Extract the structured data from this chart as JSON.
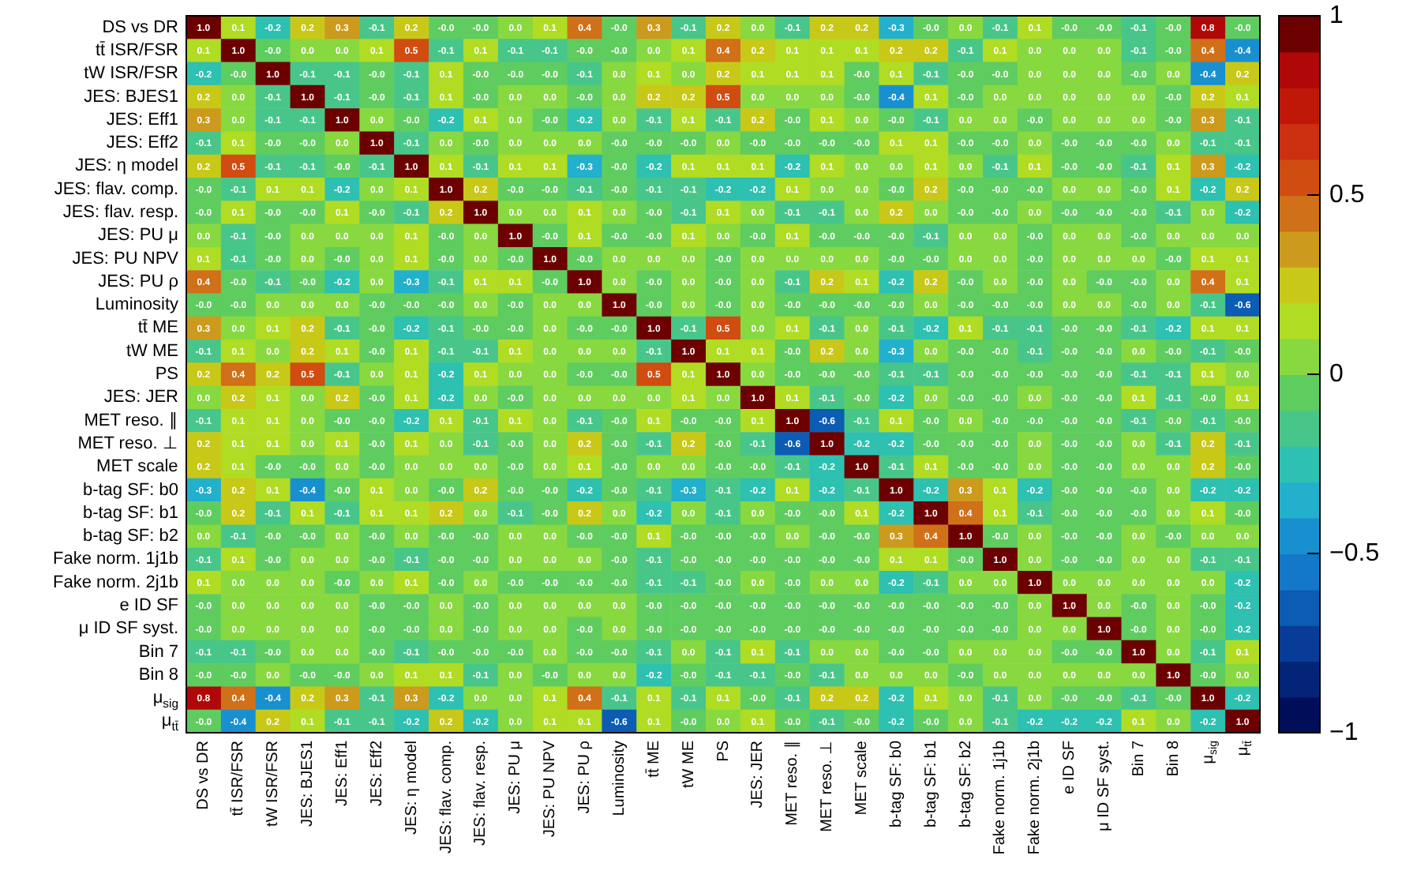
{
  "chart_data": {
    "type": "heatmap",
    "categories": [
      "DS vs DR",
      "tt̄ ISR/FSR",
      "tW ISR/FSR",
      "JES: BJES1",
      "JES: Eff1",
      "JES: Eff2",
      "JES: η model",
      "JES: flav. comp.",
      "JES: flav. resp.",
      "JES: PU μ",
      "JES: PU NPV",
      "JES: PU ρ",
      "Luminosity",
      "tt̄ ME",
      "tW ME",
      "PS",
      "JES: JER",
      "MET reso. ∥",
      "MET reso. ⊥",
      "MET scale",
      "b-tag SF: b0",
      "b-tag SF: b1",
      "b-tag SF: b2",
      "Fake norm. 1j1b",
      "Fake norm. 2j1b",
      "e ID SF",
      "μ ID SF syst.",
      "Bin 7",
      "Bin 8",
      "μ$_{sig}$",
      "μ$_{tt̄}$"
    ],
    "y_categories": [
      "DS vs DR",
      "tt̄ ISR/FSR",
      "tW ISR/FSR",
      "JES: BJES1",
      "JES: Eff1",
      "JES: Eff2",
      "JES: η model",
      "JES: flav. comp.",
      "JES: flav. resp.",
      "JES: PU μ",
      "JES: PU NPV",
      "JES: PU ρ",
      "Luminosity",
      "tt̄ ME",
      "tW ME",
      "PS",
      "JES: JER",
      "MET reso. ∥",
      "MET reso. ⊥",
      "MET scale",
      "b-tag SF: b0",
      "b-tag SF: b1",
      "b-tag SF: b2",
      "Fake norm. 1j1b",
      "Fake norm. 2j1b",
      "e ID SF",
      "μ ID SF syst.",
      "Bin 7",
      "Bin 8",
      "μ$_{sig}$",
      "μ$_{tt̄}$"
    ],
    "cells": [
      [
        1.0,
        0.1,
        -0.2,
        0.2,
        0.3,
        -0.1,
        0.2,
        -0.0,
        -0.0,
        0.0,
        0.1,
        0.4,
        -0.0,
        0.3,
        -0.1,
        0.2,
        0.0,
        -0.1,
        0.2,
        0.2,
        -0.3,
        -0.0,
        0.0,
        -0.1,
        0.1,
        -0.0,
        -0.0,
        -0.1,
        -0.0,
        0.8,
        -0.0
      ],
      [
        0.1,
        1.0,
        -0.0,
        0.0,
        0.0,
        0.1,
        0.5,
        -0.1,
        0.1,
        -0.1,
        -0.1,
        -0.0,
        -0.0,
        0.0,
        0.1,
        0.4,
        0.2,
        0.1,
        0.1,
        0.1,
        0.2,
        0.2,
        -0.1,
        0.1,
        0.0,
        0.0,
        0.0,
        -0.1,
        -0.0,
        0.4,
        -0.4
      ],
      [
        -0.2,
        -0.0,
        1.0,
        -0.1,
        -0.1,
        -0.0,
        -0.1,
        0.1,
        -0.0,
        -0.0,
        -0.0,
        -0.1,
        0.0,
        0.1,
        0.0,
        0.2,
        0.1,
        0.1,
        0.1,
        -0.0,
        0.1,
        -0.1,
        -0.0,
        -0.0,
        0.0,
        0.0,
        0.0,
        -0.0,
        0.0,
        -0.4,
        0.2
      ],
      [
        0.2,
        0.0,
        -0.1,
        1.0,
        -0.1,
        -0.0,
        -0.1,
        0.1,
        -0.0,
        0.0,
        0.0,
        -0.0,
        0.0,
        0.2,
        0.2,
        0.5,
        0.0,
        0.0,
        0.0,
        -0.0,
        -0.4,
        0.1,
        -0.0,
        0.0,
        0.0,
        0.0,
        0.0,
        0.0,
        -0.0,
        0.2,
        0.1
      ],
      [
        0.3,
        0.0,
        -0.1,
        -0.1,
        1.0,
        0.0,
        -0.0,
        -0.2,
        0.1,
        0.0,
        -0.0,
        -0.2,
        0.0,
        -0.1,
        0.1,
        -0.1,
        0.2,
        -0.0,
        0.1,
        0.0,
        -0.0,
        -0.1,
        0.0,
        0.0,
        -0.0,
        0.0,
        0.0,
        0.0,
        -0.0,
        0.3,
        -0.1
      ],
      [
        -0.1,
        0.1,
        -0.0,
        -0.0,
        0.0,
        1.0,
        -0.1,
        0.0,
        -0.0,
        0.0,
        0.0,
        0.0,
        -0.0,
        -0.0,
        -0.0,
        0.0,
        -0.0,
        -0.0,
        -0.0,
        -0.0,
        0.1,
        0.1,
        -0.0,
        -0.0,
        0.0,
        -0.0,
        -0.0,
        -0.0,
        0.0,
        -0.1,
        -0.1
      ],
      [
        0.2,
        0.5,
        -0.1,
        -0.1,
        -0.0,
        -0.1,
        1.0,
        0.1,
        -0.1,
        0.1,
        0.1,
        -0.3,
        -0.0,
        -0.2,
        0.1,
        0.1,
        0.1,
        -0.2,
        0.1,
        0.0,
        0.0,
        0.1,
        0.0,
        -0.1,
        0.1,
        -0.0,
        -0.0,
        -0.1,
        0.1,
        0.3,
        -0.2
      ],
      [
        -0.0,
        -0.1,
        0.1,
        0.1,
        -0.2,
        0.0,
        0.1,
        1.0,
        0.2,
        -0.0,
        -0.0,
        -0.1,
        -0.0,
        -0.1,
        -0.1,
        -0.2,
        -0.2,
        0.1,
        0.0,
        0.0,
        -0.0,
        0.2,
        -0.0,
        -0.0,
        -0.0,
        0.0,
        0.0,
        -0.0,
        0.1,
        -0.2,
        0.2
      ],
      [
        -0.0,
        0.1,
        -0.0,
        -0.0,
        0.1,
        -0.0,
        -0.1,
        0.2,
        1.0,
        0.0,
        0.0,
        0.1,
        0.0,
        -0.0,
        -0.1,
        0.1,
        0.0,
        -0.1,
        -0.1,
        0.0,
        0.2,
        0.0,
        -0.0,
        -0.0,
        0.0,
        -0.0,
        -0.0,
        -0.0,
        -0.1,
        0.0,
        -0.2
      ],
      [
        0.0,
        -0.1,
        -0.0,
        0.0,
        0.0,
        0.0,
        0.1,
        -0.0,
        0.0,
        1.0,
        -0.0,
        0.1,
        -0.0,
        -0.0,
        0.1,
        0.0,
        -0.0,
        0.1,
        -0.0,
        -0.0,
        -0.0,
        -0.1,
        0.0,
        0.0,
        -0.0,
        0.0,
        0.0,
        -0.0,
        0.0,
        0.0,
        0.0
      ],
      [
        0.1,
        -0.1,
        -0.0,
        0.0,
        -0.0,
        0.0,
        0.1,
        -0.0,
        0.0,
        -0.0,
        1.0,
        -0.0,
        0.0,
        0.0,
        0.0,
        -0.0,
        0.0,
        0.0,
        0.0,
        0.0,
        -0.0,
        -0.0,
        0.0,
        0.0,
        -0.0,
        0.0,
        0.0,
        0.0,
        -0.0,
        0.1,
        0.1
      ],
      [
        0.4,
        -0.0,
        -0.1,
        -0.0,
        -0.2,
        0.0,
        -0.3,
        -0.1,
        0.1,
        0.1,
        -0.0,
        1.0,
        0.0,
        -0.0,
        0.0,
        -0.0,
        0.0,
        -0.1,
        0.2,
        0.1,
        -0.2,
        0.2,
        -0.0,
        0.0,
        -0.0,
        0.0,
        -0.0,
        -0.0,
        0.0,
        0.4,
        0.1
      ],
      [
        -0.0,
        -0.0,
        0.0,
        0.0,
        0.0,
        -0.0,
        -0.0,
        -0.0,
        0.0,
        -0.0,
        0.0,
        0.0,
        1.0,
        -0.0,
        0.0,
        -0.0,
        0.0,
        -0.0,
        -0.0,
        -0.0,
        -0.0,
        0.0,
        -0.0,
        -0.0,
        -0.0,
        0.0,
        0.0,
        -0.0,
        0.0,
        -0.1,
        -0.6
      ],
      [
        0.3,
        0.0,
        0.1,
        0.2,
        -0.1,
        -0.0,
        -0.2,
        -0.1,
        -0.0,
        -0.0,
        0.0,
        -0.0,
        -0.0,
        1.0,
        -0.1,
        0.5,
        0.0,
        0.1,
        -0.1,
        0.0,
        -0.1,
        -0.2,
        0.1,
        -0.1,
        -0.1,
        -0.0,
        -0.0,
        -0.1,
        -0.2,
        0.1,
        0.1
      ],
      [
        -0.1,
        0.1,
        0.0,
        0.2,
        0.1,
        -0.0,
        0.1,
        -0.1,
        -0.1,
        0.1,
        0.0,
        0.0,
        0.0,
        -0.1,
        1.0,
        0.1,
        0.1,
        -0.0,
        0.2,
        0.0,
        -0.3,
        0.0,
        -0.0,
        -0.0,
        -0.1,
        -0.0,
        -0.0,
        0.0,
        -0.0,
        -0.1,
        -0.0
      ],
      [
        0.2,
        0.4,
        0.2,
        0.5,
        -0.1,
        0.0,
        0.1,
        -0.2,
        0.1,
        0.0,
        0.0,
        -0.0,
        -0.0,
        0.5,
        0.1,
        1.0,
        0.0,
        -0.0,
        -0.0,
        -0.0,
        -0.1,
        -0.1,
        -0.0,
        -0.0,
        -0.0,
        -0.0,
        -0.0,
        -0.1,
        -0.1,
        0.1,
        0.0
      ],
      [
        0.0,
        0.2,
        0.1,
        0.0,
        0.2,
        -0.0,
        0.1,
        -0.2,
        0.0,
        -0.0,
        0.0,
        0.0,
        0.0,
        0.0,
        0.1,
        0.0,
        1.0,
        0.1,
        -0.1,
        -0.0,
        -0.2,
        0.0,
        -0.0,
        -0.0,
        0.0,
        -0.0,
        -0.0,
        0.1,
        -0.1,
        -0.0,
        0.1
      ],
      [
        -0.1,
        0.1,
        0.1,
        0.0,
        -0.0,
        -0.0,
        -0.2,
        0.1,
        -0.1,
        0.1,
        0.0,
        -0.1,
        -0.0,
        0.1,
        -0.0,
        -0.0,
        0.1,
        1.0,
        -0.6,
        -0.1,
        0.1,
        -0.0,
        0.0,
        -0.0,
        -0.0,
        -0.0,
        -0.0,
        -0.1,
        -0.0,
        -0.1,
        -0.0
      ],
      [
        0.2,
        0.1,
        0.1,
        0.0,
        0.1,
        -0.0,
        0.1,
        0.0,
        -0.1,
        -0.0,
        0.0,
        0.2,
        -0.0,
        -0.1,
        0.2,
        -0.0,
        -0.1,
        -0.6,
        1.0,
        -0.2,
        -0.2,
        -0.0,
        -0.0,
        -0.0,
        0.0,
        -0.0,
        -0.0,
        0.0,
        -0.1,
        0.2,
        -0.1
      ],
      [
        0.2,
        0.1,
        -0.0,
        -0.0,
        0.0,
        -0.0,
        0.0,
        0.0,
        0.0,
        -0.0,
        0.0,
        0.1,
        -0.0,
        0.0,
        0.0,
        -0.0,
        -0.0,
        -0.1,
        -0.2,
        1.0,
        -0.1,
        0.1,
        -0.0,
        -0.0,
        0.0,
        -0.0,
        -0.0,
        0.0,
        0.0,
        0.2,
        -0.0
      ],
      [
        -0.3,
        0.2,
        0.1,
        -0.4,
        -0.0,
        0.1,
        0.0,
        -0.0,
        0.2,
        -0.0,
        -0.0,
        -0.2,
        -0.0,
        -0.1,
        -0.3,
        -0.1,
        -0.2,
        0.1,
        -0.2,
        -0.1,
        1.0,
        -0.2,
        0.3,
        0.1,
        -0.2,
        -0.0,
        -0.0,
        -0.0,
        0.0,
        -0.2,
        -0.2
      ],
      [
        -0.0,
        0.2,
        -0.1,
        0.1,
        -0.1,
        0.1,
        0.1,
        0.2,
        0.0,
        -0.1,
        -0.0,
        0.2,
        0.0,
        -0.2,
        0.0,
        -0.1,
        0.0,
        -0.0,
        -0.0,
        0.1,
        -0.2,
        1.0,
        0.4,
        0.1,
        -0.1,
        -0.0,
        -0.0,
        -0.0,
        0.0,
        0.1,
        -0.0
      ],
      [
        0.0,
        -0.1,
        -0.0,
        -0.0,
        0.0,
        -0.0,
        0.0,
        -0.0,
        -0.0,
        0.0,
        0.0,
        -0.0,
        -0.0,
        0.1,
        -0.0,
        -0.0,
        -0.0,
        0.0,
        -0.0,
        -0.0,
        0.3,
        0.4,
        1.0,
        -0.0,
        0.0,
        -0.0,
        -0.0,
        0.0,
        -0.0,
        0.0,
        0.0
      ],
      [
        -0.1,
        0.1,
        -0.0,
        0.0,
        0.0,
        -0.0,
        -0.1,
        -0.0,
        -0.0,
        0.0,
        0.0,
        0.0,
        -0.0,
        -0.1,
        -0.0,
        -0.0,
        -0.0,
        -0.0,
        -0.0,
        -0.0,
        0.1,
        0.1,
        -0.0,
        1.0,
        0.0,
        -0.0,
        -0.0,
        0.0,
        0.0,
        -0.1,
        -0.1
      ],
      [
        0.1,
        0.0,
        0.0,
        0.0,
        -0.0,
        0.0,
        0.1,
        -0.0,
        0.0,
        -0.0,
        -0.0,
        -0.0,
        -0.0,
        -0.1,
        -0.1,
        -0.0,
        0.0,
        -0.0,
        0.0,
        0.0,
        -0.2,
        -0.1,
        0.0,
        0.0,
        1.0,
        0.0,
        0.0,
        0.0,
        0.0,
        0.0,
        -0.2
      ],
      [
        -0.0,
        0.0,
        0.0,
        0.0,
        0.0,
        -0.0,
        -0.0,
        0.0,
        -0.0,
        0.0,
        0.0,
        0.0,
        0.0,
        -0.0,
        -0.0,
        -0.0,
        -0.0,
        -0.0,
        -0.0,
        -0.0,
        -0.0,
        -0.0,
        -0.0,
        -0.0,
        0.0,
        1.0,
        0.0,
        -0.0,
        0.0,
        -0.0,
        -0.2
      ],
      [
        -0.0,
        0.0,
        0.0,
        0.0,
        0.0,
        -0.0,
        -0.0,
        0.0,
        -0.0,
        0.0,
        0.0,
        -0.0,
        0.0,
        -0.0,
        -0.0,
        -0.0,
        -0.0,
        -0.0,
        -0.0,
        -0.0,
        -0.0,
        -0.0,
        -0.0,
        -0.0,
        0.0,
        0.0,
        1.0,
        -0.0,
        0.0,
        -0.0,
        -0.2
      ],
      [
        -0.1,
        -0.1,
        -0.0,
        0.0,
        0.0,
        -0.0,
        -0.1,
        -0.0,
        -0.0,
        -0.0,
        0.0,
        -0.0,
        -0.0,
        -0.1,
        0.0,
        -0.1,
        0.1,
        -0.1,
        0.0,
        0.0,
        -0.0,
        -0.0,
        0.0,
        0.0,
        0.0,
        -0.0,
        -0.0,
        1.0,
        0.0,
        -0.1,
        0.1
      ],
      [
        -0.0,
        -0.0,
        0.0,
        -0.0,
        -0.0,
        0.0,
        0.1,
        0.1,
        -0.1,
        0.0,
        -0.0,
        0.0,
        0.0,
        -0.2,
        -0.0,
        -0.1,
        -0.1,
        -0.0,
        -0.1,
        0.0,
        0.0,
        0.0,
        -0.0,
        0.0,
        0.0,
        0.0,
        0.0,
        0.0,
        1.0,
        -0.0,
        0.0
      ],
      [
        0.8,
        0.4,
        -0.4,
        0.2,
        0.3,
        -0.1,
        0.3,
        -0.2,
        0.0,
        0.0,
        0.1,
        0.4,
        -0.1,
        0.1,
        -0.1,
        0.1,
        -0.0,
        -0.1,
        0.2,
        0.2,
        -0.2,
        0.1,
        0.0,
        -0.1,
        0.0,
        -0.0,
        -0.0,
        -0.1,
        -0.0,
        1.0,
        -0.2
      ],
      [
        -0.0,
        -0.4,
        0.2,
        0.1,
        -0.1,
        -0.1,
        -0.2,
        0.2,
        -0.2,
        0.0,
        0.1,
        0.1,
        -0.6,
        0.1,
        -0.0,
        0.0,
        0.1,
        -0.0,
        -0.1,
        -0.0,
        -0.2,
        -0.0,
        0.0,
        -0.1,
        -0.2,
        -0.2,
        -0.2,
        0.1,
        0.0,
        -0.2,
        1.0
      ]
    ],
    "cell_labels": [
      [
        "1.0",
        "0.1",
        "-0.2",
        "0.2",
        "0.3",
        "-0.1",
        "0.2",
        "-0.0",
        "-0.0",
        "0.0",
        "0.1",
        "0.4",
        "-0.0",
        "0.3",
        "-0.1",
        "0.2",
        "0.0",
        "-0.1",
        "0.2",
        "0.2",
        "-0.3",
        "-0.0",
        "0.0",
        "-0.1",
        "0.1",
        "-0.0",
        "-0.0",
        "-0.1",
        "-0.0",
        "0.8",
        "-0.0"
      ],
      [
        "0.1",
        "1.0",
        "-0.0",
        "0.0",
        "0.0",
        "0.1",
        "0.5",
        "-0.1",
        "0.1",
        "-0.1",
        "-0.1",
        "-0.0",
        "-0.0",
        "0.0",
        "0.1",
        "0.4",
        "0.2",
        "0.1",
        "0.1",
        "0.1",
        "0.2",
        "0.2",
        "-0.1",
        "0.1",
        "0.0",
        "0.0",
        "0.0",
        "-0.1",
        "-0.0",
        "0.4",
        "-0.4"
      ],
      [
        "-0.2",
        "-0.0",
        "1.0",
        "-0.1",
        "-0.1",
        "-0.0",
        "-0.1",
        "0.1",
        "-0.0",
        "-0.0",
        "-0.0",
        "-0.1",
        "0.0",
        "0.1",
        "0.0",
        "0.2",
        "0.1",
        "0.1",
        "0.1",
        "-0.0",
        "0.1",
        "-0.1",
        "-0.0",
        "-0.0",
        "0.0",
        "0.0",
        "0.0",
        "-0.0",
        "0.0",
        "-0.4",
        "0.2"
      ],
      [
        "0.2",
        "0.0",
        "-0.1",
        "1.0",
        "-0.1",
        "-0.0",
        "-0.1",
        "0.1",
        "-0.0",
        "0.0",
        "0.0",
        "-0.0",
        "0.0",
        "0.2",
        "0.2",
        "0.5",
        "0.0",
        "0.0",
        "0.0",
        "-0.0",
        "-0.4",
        "0.1",
        "-0.0",
        "0.0",
        "0.0",
        "0.0",
        "0.0",
        "0.0",
        "-0.0",
        "0.2",
        "0.1"
      ],
      [
        "0.3",
        "0.0",
        "-0.1",
        "-0.1",
        "1.0",
        "0.0",
        "-0.0",
        "-0.2",
        "0.1",
        "0.0",
        "-0.0",
        "-0.2",
        "0.0",
        "-0.1",
        "0.1",
        "-0.1",
        "0.2",
        "-0.0",
        "0.1",
        "0.0",
        "-0.0",
        "-0.1",
        "0.0",
        "0.0",
        "-0.0",
        "0.0",
        "0.0",
        "0.0",
        "-0.0",
        "0.3",
        "-0.1"
      ],
      [
        "-0.1",
        "0.1",
        "-0.0",
        "-0.0",
        "0.0",
        "1.0",
        "-0.1",
        "0.0",
        "-0.0",
        "0.0",
        "0.0",
        "0.0",
        "-0.0",
        "-0.0",
        "-0.0",
        "0.0",
        "-0.0",
        "-0.0",
        "-0.0",
        "-0.0",
        "0.1",
        "0.1",
        "-0.0",
        "-0.0",
        "0.0",
        "-0.0",
        "-0.0",
        "-0.0",
        "0.0",
        "-0.1",
        "-0.1"
      ],
      [
        "0.2",
        "0.5",
        "-0.1",
        "-0.1",
        "-0.0",
        "-0.1",
        "1.0",
        "0.1",
        "-0.1",
        "0.1",
        "0.1",
        "-0.3",
        "-0.0",
        "-0.2",
        "0.1",
        "0.1",
        "0.1",
        "-0.2",
        "0.1",
        "0.0",
        "0.0",
        "0.1",
        "0.0",
        "-0.1",
        "0.1",
        "-0.0",
        "-0.0",
        "-0.1",
        "0.1",
        "0.3",
        "-0.2"
      ],
      [
        "-0.0",
        "-0.1",
        "0.1",
        "0.1",
        "-0.2",
        "0.0",
        "0.1",
        "1.0",
        "0.2",
        "-0.0",
        "-0.0",
        "-0.1",
        "-0.0",
        "-0.1",
        "-0.1",
        "-0.2",
        "-0.2",
        "0.1",
        "0.0",
        "0.0",
        "-0.0",
        "0.2",
        "-0.0",
        "-0.0",
        "-0.0",
        "0.0",
        "0.0",
        "-0.0",
        "0.1",
        "-0.2",
        "0.2"
      ],
      [
        "-0.0",
        "0.1",
        "-0.0",
        "-0.0",
        "0.1",
        "-0.0",
        "-0.1",
        "0.2",
        "1.0",
        "0.0",
        "0.0",
        "0.1",
        "0.0",
        "-0.0",
        "-0.1",
        "0.1",
        "0.0",
        "-0.1",
        "-0.1",
        "0.0",
        "0.2",
        "0.0",
        "-0.0",
        "-0.0",
        "0.0",
        "-0.0",
        "-0.0",
        "-0.0",
        "-0.1",
        "0.0",
        "-0.2"
      ],
      [
        "0.0",
        "-0.1",
        "-0.0",
        "0.0",
        "0.0",
        "0.0",
        "0.1",
        "-0.0",
        "0.0",
        "1.0",
        "-0.0",
        "0.1",
        "-0.0",
        "-0.0",
        "0.1",
        "0.0",
        "-0.0",
        "0.1",
        "-0.0",
        "-0.0",
        "-0.0",
        "-0.1",
        "0.0",
        "0.0",
        "-0.0",
        "0.0",
        "0.0",
        "-0.0",
        "0.0",
        "0.0",
        "0.0"
      ],
      [
        "0.1",
        "-0.1",
        "-0.0",
        "0.0",
        "-0.0",
        "0.0",
        "0.1",
        "-0.0",
        "0.0",
        "-0.0",
        "1.0",
        "-0.0",
        "0.0",
        "0.0",
        "0.0",
        "-0.0",
        "0.0",
        "0.0",
        "0.0",
        "0.0",
        "-0.0",
        "-0.0",
        "0.0",
        "0.0",
        "-0.0",
        "0.0",
        "0.0",
        "0.0",
        "-0.0",
        "0.1",
        "0.1"
      ],
      [
        "0.4",
        "-0.0",
        "-0.1",
        "-0.0",
        "-0.2",
        "0.0",
        "-0.3",
        "-0.1",
        "0.1",
        "0.1",
        "-0.0",
        "1.0",
        "0.0",
        "-0.0",
        "0.0",
        "-0.0",
        "0.0",
        "-0.1",
        "0.2",
        "0.1",
        "-0.2",
        "0.2",
        "-0.0",
        "0.0",
        "-0.0",
        "0.0",
        "-0.0",
        "-0.0",
        "0.0",
        "0.4",
        "0.1"
      ],
      [
        "-0.0",
        "-0.0",
        "0.0",
        "0.0",
        "0.0",
        "-0.0",
        "-0.0",
        "-0.0",
        "0.0",
        "-0.0",
        "0.0",
        "0.0",
        "1.0",
        "-0.0",
        "0.0",
        "-0.0",
        "0.0",
        "-0.0",
        "-0.0",
        "-0.0",
        "-0.0",
        "0.0",
        "-0.0",
        "-0.0",
        "-0.0",
        "0.0",
        "0.0",
        "-0.0",
        "0.0",
        "-0.1",
        "-0.6"
      ],
      [
        "0.3",
        "0.0",
        "0.1",
        "0.2",
        "-0.1",
        "-0.0",
        "-0.2",
        "-0.1",
        "-0.0",
        "-0.0",
        "0.0",
        "-0.0",
        "-0.0",
        "1.0",
        "-0.1",
        "0.5",
        "0.0",
        "0.1",
        "-0.1",
        "0.0",
        "-0.1",
        "-0.2",
        "0.1",
        "-0.1",
        "-0.1",
        "-0.0",
        "-0.0",
        "-0.1",
        "-0.2",
        "0.1",
        "0.1"
      ],
      [
        "-0.1",
        "0.1",
        "0.0",
        "0.2",
        "0.1",
        "-0.0",
        "0.1",
        "-0.1",
        "-0.1",
        "0.1",
        "0.0",
        "0.0",
        "0.0",
        "-0.1",
        "1.0",
        "0.1",
        "0.1",
        "-0.0",
        "0.2",
        "0.0",
        "-0.3",
        "0.0",
        "-0.0",
        "-0.0",
        "-0.1",
        "-0.0",
        "-0.0",
        "0.0",
        "-0.0",
        "-0.1",
        "-0.0"
      ],
      [
        "0.2",
        "0.4",
        "0.2",
        "0.5",
        "-0.1",
        "0.0",
        "0.1",
        "-0.2",
        "0.1",
        "0.0",
        "0.0",
        "-0.0",
        "-0.0",
        "0.5",
        "0.1",
        "1.0",
        "0.0",
        "-0.0",
        "-0.0",
        "-0.0",
        "-0.1",
        "-0.1",
        "-0.0",
        "-0.0",
        "-0.0",
        "-0.0",
        "-0.0",
        "-0.1",
        "-0.1",
        "0.1",
        "0.0"
      ],
      [
        "0.0",
        "0.2",
        "0.1",
        "0.0",
        "0.2",
        "-0.0",
        "0.1",
        "-0.2",
        "0.0",
        "-0.0",
        "0.0",
        "0.0",
        "0.0",
        "0.0",
        "0.1",
        "0.0",
        "1.0",
        "0.1",
        "-0.1",
        "-0.0",
        "-0.2",
        "0.0",
        "-0.0",
        "-0.0",
        "0.0",
        "-0.0",
        "-0.0",
        "0.1",
        "-0.1",
        "-0.0",
        "0.1"
      ],
      [
        "-0.1",
        "0.1",
        "0.1",
        "0.0",
        "-0.0",
        "-0.0",
        "-0.2",
        "0.1",
        "-0.1",
        "0.1",
        "0.0",
        "-0.1",
        "-0.0",
        "0.1",
        "-0.0",
        "-0.0",
        "0.1",
        "1.0",
        "-0.6",
        "-0.1",
        "0.1",
        "-0.0",
        "0.0",
        "-0.0",
        "-0.0",
        "-0.0",
        "-0.0",
        "-0.1",
        "-0.0",
        "-0.1",
        "-0.0"
      ],
      [
        "0.2",
        "0.1",
        "0.1",
        "0.0",
        "0.1",
        "-0.0",
        "0.1",
        "0.0",
        "-0.1",
        "-0.0",
        "0.0",
        "0.2",
        "-0.0",
        "-0.1",
        "0.2",
        "-0.0",
        "-0.1",
        "-0.6",
        "1.0",
        "-0.2",
        "-0.2",
        "-0.0",
        "-0.0",
        "-0.0",
        "0.0",
        "-0.0",
        "-0.0",
        "0.0",
        "-0.1",
        "0.2",
        "-0.1"
      ],
      [
        "0.2",
        "0.1",
        "-0.0",
        "-0.0",
        "0.0",
        "-0.0",
        "0.0",
        "0.0",
        "0.0",
        "-0.0",
        "0.0",
        "0.1",
        "-0.0",
        "0.0",
        "0.0",
        "-0.0",
        "-0.0",
        "-0.1",
        "-0.2",
        "1.0",
        "-0.1",
        "0.1",
        "-0.0",
        "-0.0",
        "0.0",
        "-0.0",
        "-0.0",
        "0.0",
        "0.0",
        "0.2",
        "-0.0"
      ],
      [
        "-0.3",
        "0.2",
        "0.1",
        "-0.4",
        "-0.0",
        "0.1",
        "0.0",
        "-0.0",
        "0.2",
        "-0.0",
        "-0.0",
        "-0.2",
        "-0.0",
        "-0.1",
        "-0.3",
        "-0.1",
        "-0.2",
        "0.1",
        "-0.2",
        "-0.1",
        "1.0",
        "-0.2",
        "0.3",
        "0.1",
        "-0.2",
        "-0.0",
        "-0.0",
        "-0.0",
        "0.0",
        "-0.2",
        "-0.2"
      ],
      [
        "-0.0",
        "0.2",
        "-0.1",
        "0.1",
        "-0.1",
        "0.1",
        "0.1",
        "0.2",
        "0.0",
        "-0.1",
        "-0.0",
        "0.2",
        "0.0",
        "-0.2",
        "0.0",
        "-0.1",
        "0.0",
        "-0.0",
        "-0.0",
        "0.1",
        "-0.2",
        "1.0",
        "0.4",
        "0.1",
        "-0.1",
        "-0.0",
        "-0.0",
        "-0.0",
        "0.0",
        "0.1",
        "-0.0"
      ],
      [
        "0.0",
        "-0.1",
        "-0.0",
        "-0.0",
        "0.0",
        "-0.0",
        "0.0",
        "-0.0",
        "-0.0",
        "0.0",
        "0.0",
        "-0.0",
        "-0.0",
        "0.1",
        "-0.0",
        "-0.0",
        "-0.0",
        "0.0",
        "-0.0",
        "-0.0",
        "0.3",
        "0.4",
        "1.0",
        "-0.0",
        "0.0",
        "-0.0",
        "-0.0",
        "0.0",
        "-0.0",
        "0.0",
        "0.0"
      ],
      [
        "-0.1",
        "0.1",
        "-0.0",
        "0.0",
        "0.0",
        "-0.0",
        "-0.1",
        "-0.0",
        "-0.0",
        "0.0",
        "0.0",
        "0.0",
        "-0.0",
        "-0.1",
        "-0.0",
        "-0.0",
        "-0.0",
        "-0.0",
        "-0.0",
        "-0.0",
        "0.1",
        "0.1",
        "-0.0",
        "1.0",
        "0.0",
        "-0.0",
        "-0.0",
        "0.0",
        "0.0",
        "-0.1",
        "-0.1"
      ],
      [
        "0.1",
        "0.0",
        "0.0",
        "0.0",
        "-0.0",
        "0.0",
        "0.1",
        "-0.0",
        "0.0",
        "-0.0",
        "-0.0",
        "-0.0",
        "-0.0",
        "-0.1",
        "-0.1",
        "-0.0",
        "0.0",
        "-0.0",
        "0.0",
        "0.0",
        "-0.2",
        "-0.1",
        "0.0",
        "0.0",
        "1.0",
        "0.0",
        "0.0",
        "0.0",
        "0.0",
        "0.0",
        "-0.2"
      ],
      [
        "-0.0",
        "0.0",
        "0.0",
        "0.0",
        "0.0",
        "-0.0",
        "-0.0",
        "0.0",
        "-0.0",
        "0.0",
        "0.0",
        "0.0",
        "0.0",
        "-0.0",
        "-0.0",
        "-0.0",
        "-0.0",
        "-0.0",
        "-0.0",
        "-0.0",
        "-0.0",
        "-0.0",
        "-0.0",
        "-0.0",
        "0.0",
        "1.0",
        "0.0",
        "-0.0",
        "0.0",
        "-0.0",
        "-0.2"
      ],
      [
        "-0.0",
        "0.0",
        "0.0",
        "0.0",
        "0.0",
        "-0.0",
        "-0.0",
        "0.0",
        "-0.0",
        "0.0",
        "0.0",
        "-0.0",
        "0.0",
        "-0.0",
        "-0.0",
        "-0.0",
        "-0.0",
        "-0.0",
        "-0.0",
        "-0.0",
        "-0.0",
        "-0.0",
        "-0.0",
        "-0.0",
        "0.0",
        "0.0",
        "1.0",
        "-0.0",
        "0.0",
        "-0.0",
        "-0.2"
      ],
      [
        "-0.1",
        "-0.1",
        "-0.0",
        "0.0",
        "0.0",
        "-0.0",
        "-0.1",
        "-0.0",
        "-0.0",
        "-0.0",
        "0.0",
        "-0.0",
        "-0.0",
        "-0.1",
        "0.0",
        "-0.1",
        "0.1",
        "-0.1",
        "0.0",
        "0.0",
        "-0.0",
        "-0.0",
        "0.0",
        "0.0",
        "0.0",
        "-0.0",
        "-0.0",
        "1.0",
        "0.0",
        "-0.1",
        "0.1"
      ],
      [
        "-0.0",
        "-0.0",
        "0.0",
        "-0.0",
        "-0.0",
        "0.0",
        "0.1",
        "0.1",
        "-0.1",
        "0.0",
        "-0.0",
        "0.0",
        "0.0",
        "-0.2",
        "-0.0",
        "-0.1",
        "-0.1",
        "-0.0",
        "-0.1",
        "0.0",
        "0.0",
        "0.0",
        "-0.0",
        "0.0",
        "0.0",
        "0.0",
        "0.0",
        "0.0",
        "1.0",
        "-0.0",
        "0.0"
      ],
      [
        "0.8",
        "0.4",
        "-0.4",
        "0.2",
        "0.3",
        "-0.1",
        "0.3",
        "-0.2",
        "0.0",
        "0.0",
        "0.1",
        "0.4",
        "-0.1",
        "0.1",
        "-0.1",
        "0.1",
        "-0.0",
        "-0.1",
        "0.2",
        "0.2",
        "-0.2",
        "0.1",
        "0.0",
        "-0.1",
        "0.0",
        "-0.0",
        "-0.0",
        "-0.1",
        "-0.0",
        "1.0",
        "-0.2"
      ],
      [
        "-0.0",
        "-0.4",
        "0.2",
        "0.1",
        "-0.1",
        "-0.1",
        "-0.2",
        "0.2",
        "-0.2",
        "0.0",
        "0.1",
        "0.1",
        "-0.6",
        "0.1",
        "-0.0",
        "0.0",
        "0.1",
        "-0.0",
        "-0.1",
        "-0.0",
        "-0.2",
        "-0.0",
        "0.0",
        "-0.1",
        "-0.2",
        "-0.2",
        "-0.2",
        "0.1",
        "0.0",
        "-0.2",
        "1.0"
      ]
    ],
    "clim": [
      -1,
      1
    ],
    "cticks": [
      {
        "value": -1,
        "label": "−1"
      },
      {
        "value": -0.5,
        "label": "−0.5"
      },
      0,
      0.5,
      1
    ],
    "data_labels": true
  }
}
